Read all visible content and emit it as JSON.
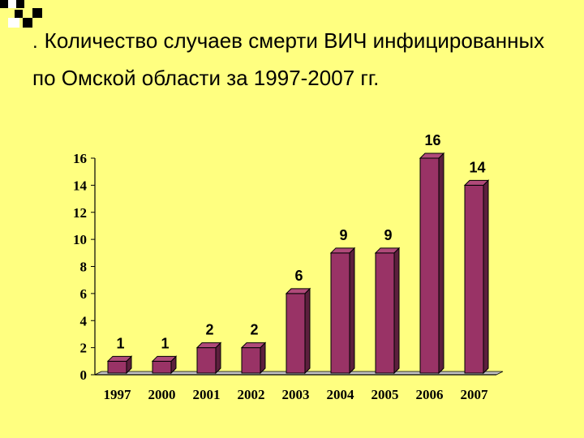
{
  "slide": {
    "bullet": ".",
    "title": "Количество случаев смерти ВИЧ инфицированных по Омской области за 1997-2007 гг."
  },
  "colors": {
    "background": "#FFFF80",
    "bar_front": "#993366",
    "bar_side": "#5C1F3D",
    "bar_top": "#B04A7A",
    "floor": "#C0C0C0"
  },
  "chart_data": {
    "type": "bar",
    "title": "",
    "xlabel": "",
    "ylabel": "",
    "categories": [
      "1997",
      "2000",
      "2001",
      "2002",
      "2003",
      "2004",
      "2005",
      "2006",
      "2007"
    ],
    "values": [
      1,
      1,
      2,
      2,
      6,
      9,
      9,
      16,
      14
    ],
    "data_labels": [
      "1",
      "1",
      "2",
      "2",
      "6",
      "9",
      "9",
      "16",
      "14"
    ],
    "ylim": [
      0,
      16
    ],
    "yticks": [
      "0",
      "2",
      "4",
      "6",
      "8",
      "10",
      "12",
      "14",
      "16"
    ],
    "grid": false,
    "legend": "none",
    "style": "3d-bar"
  }
}
